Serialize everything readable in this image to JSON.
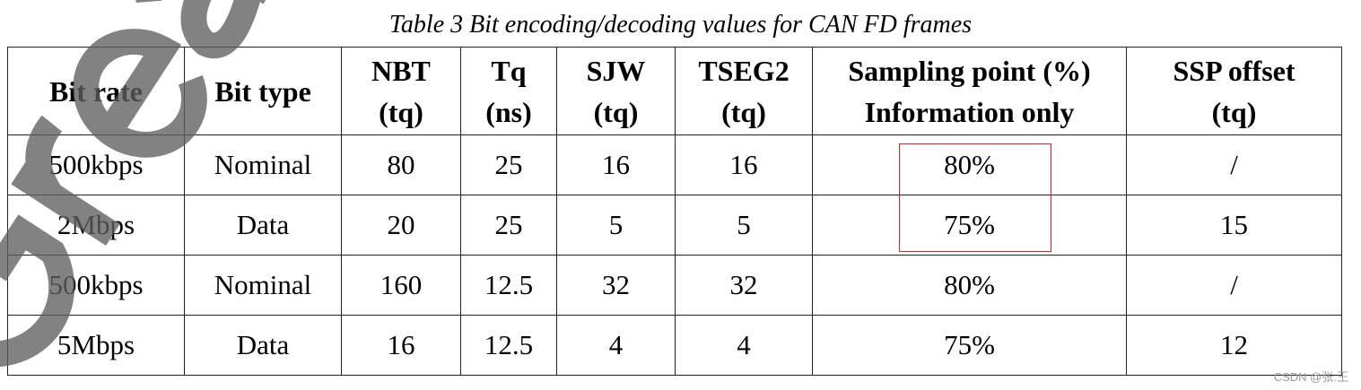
{
  "caption": "Table 3    Bit encoding/decoding values for CAN FD frames",
  "table": {
    "headers": [
      [
        "Bit rate"
      ],
      [
        "Bit type"
      ],
      [
        "NBT",
        "(tq)"
      ],
      [
        "Tq",
        "(ns)"
      ],
      [
        "SJW",
        "(tq)"
      ],
      [
        "TSEG2",
        "(tq)"
      ],
      [
        "Sampling point (%)",
        "Information only"
      ],
      [
        "SSP offset",
        "(tq)"
      ]
    ],
    "rows": [
      [
        "500kbps",
        "Nominal",
        "80",
        "25",
        "16",
        "16",
        "80%",
        "/"
      ],
      [
        "2Mbps",
        "Data",
        "20",
        "25",
        "5",
        "5",
        "75%",
        "15"
      ],
      [
        "500kbps",
        "Nominal",
        "160",
        "12.5",
        "32",
        "32",
        "80%",
        "/"
      ],
      [
        "5Mbps",
        "Data",
        "16",
        "12.5",
        "4",
        "4",
        "75%",
        "12"
      ]
    ]
  },
  "highlight_color": "#e02020",
  "watermark": "Great",
  "csdn_watermark": "CSDN @张.王"
}
